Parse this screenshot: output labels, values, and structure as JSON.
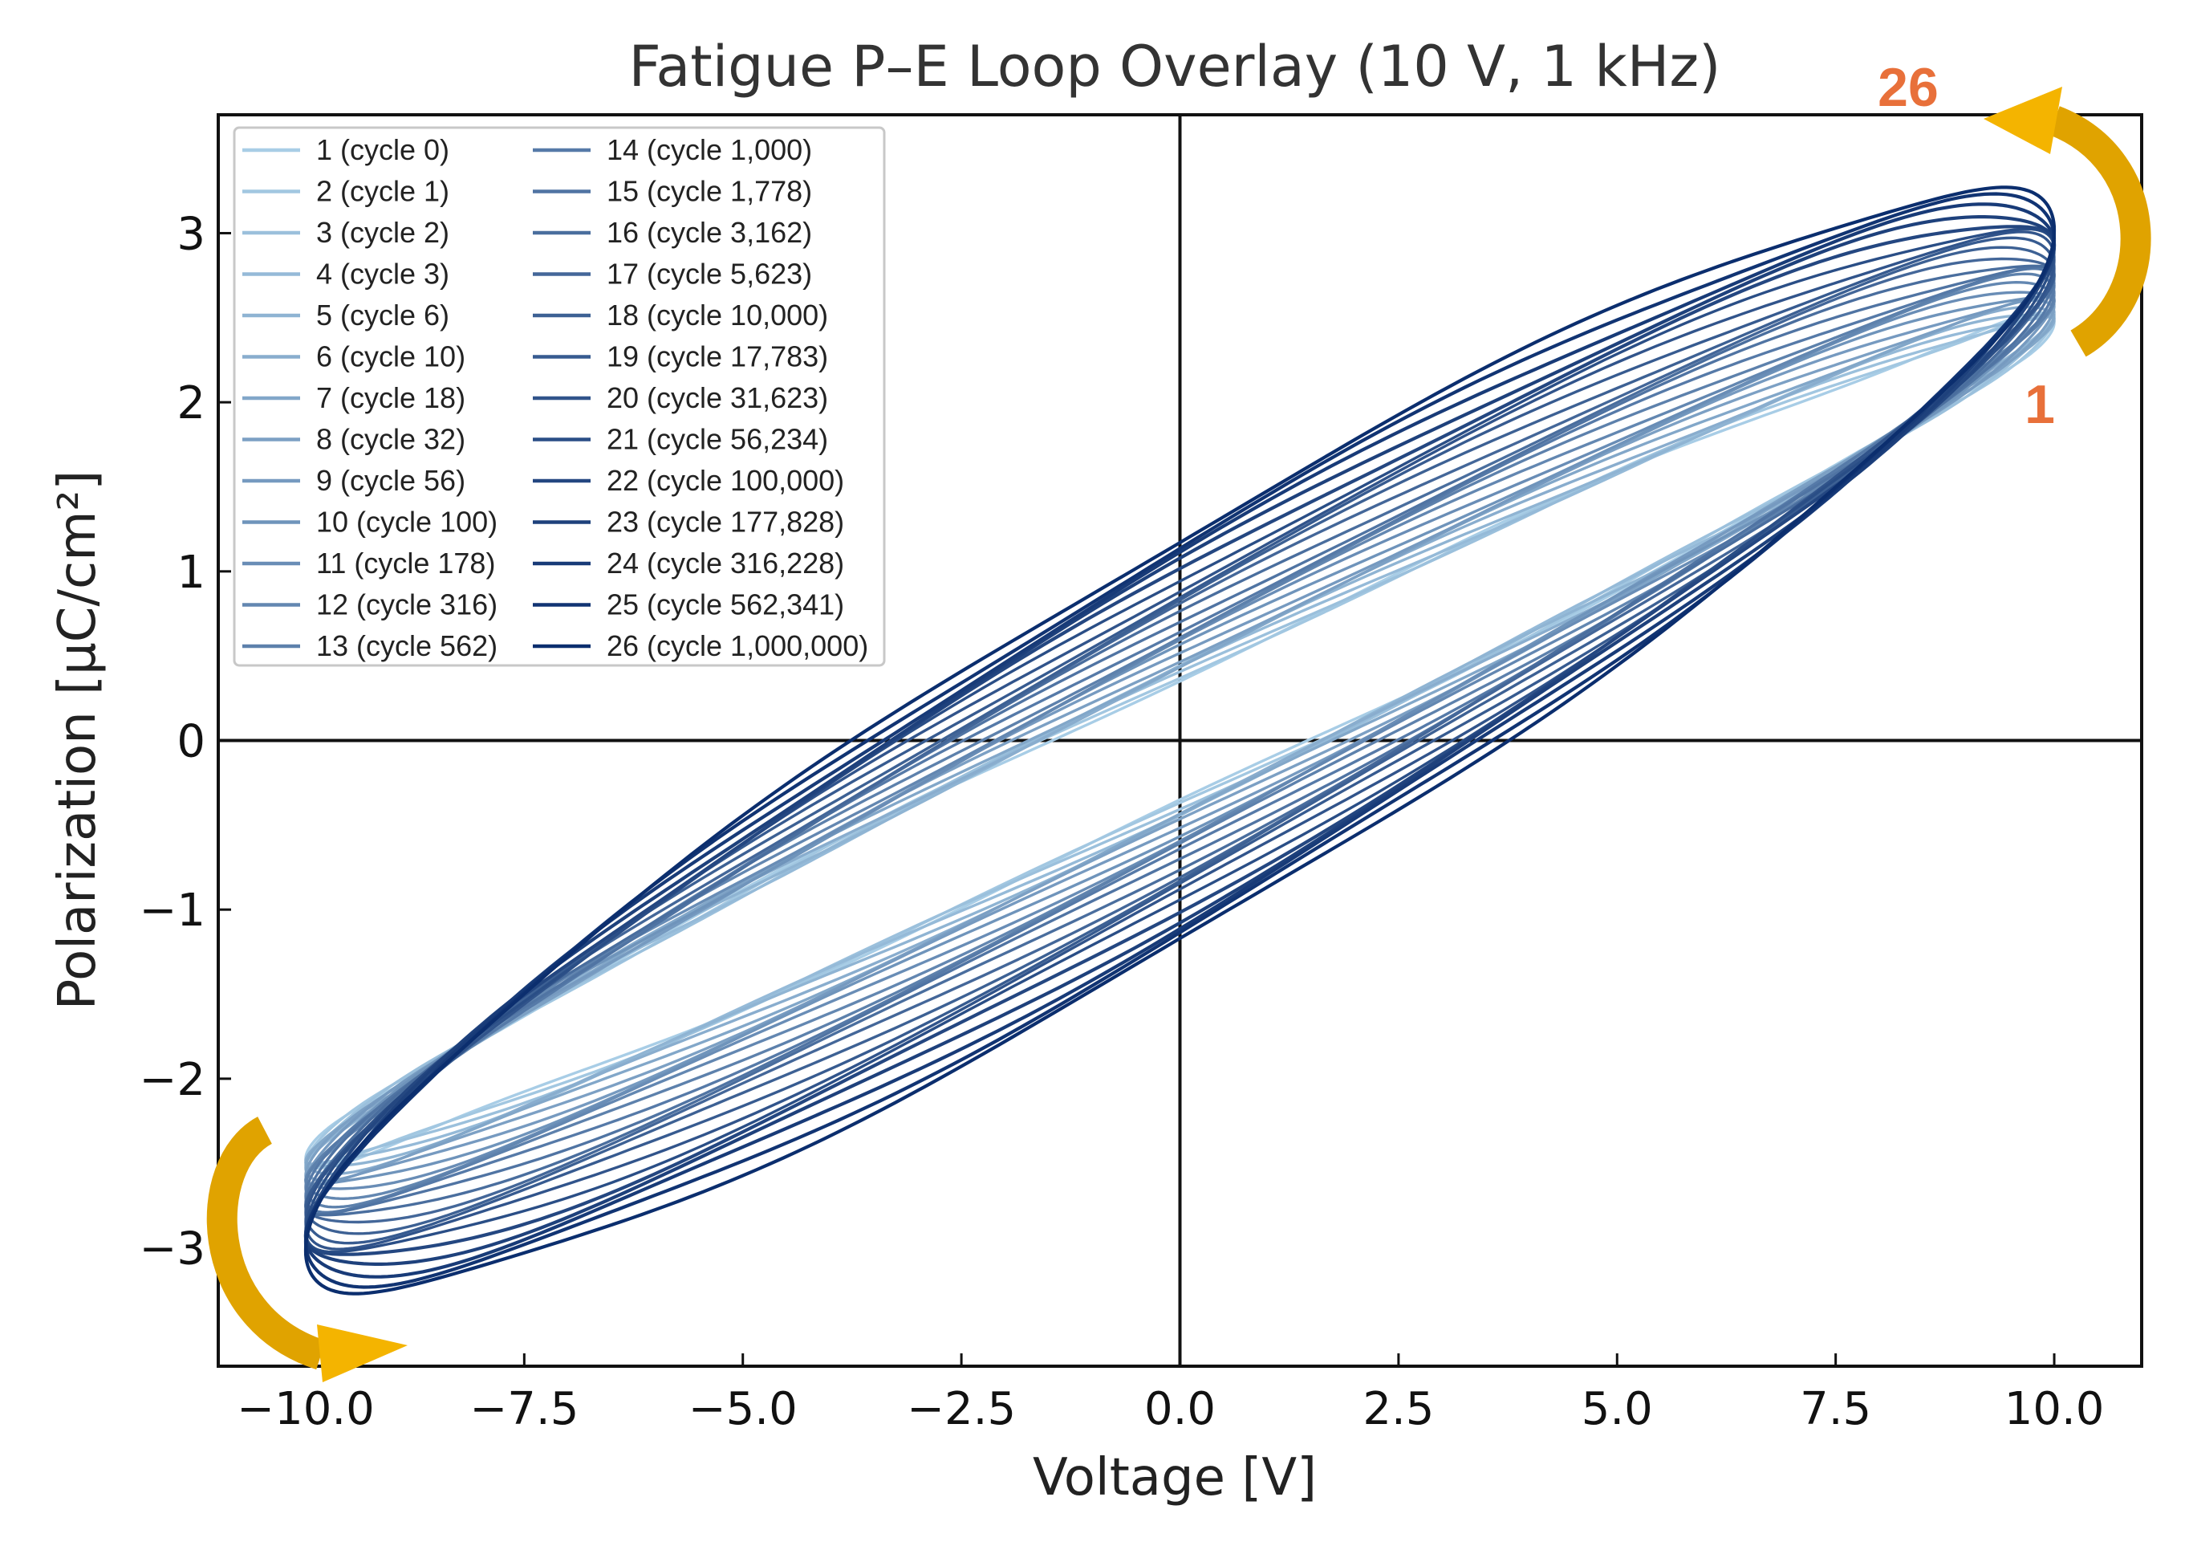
{
  "chart_data": {
    "type": "line",
    "title": "Fatigue P–E Loop Overlay (10 V, 1 kHz)",
    "xlabel": "Voltage [V]",
    "ylabel": "Polarization [μC/cm²]",
    "xlim": [
      -11,
      11
    ],
    "ylim": [
      -3.7,
      3.7
    ],
    "xticks": [
      -10,
      -7.5,
      -5,
      -2.5,
      0,
      2.5,
      5,
      7.5,
      10
    ],
    "xtick_labels": [
      "−10.0",
      "−7.5",
      "−5.0",
      "−2.5",
      "0.0",
      "2.5",
      "5.0",
      "7.5",
      "10.0"
    ],
    "yticks": [
      -3,
      -2,
      -1,
      0,
      1,
      2,
      3
    ],
    "ytick_labels": [
      "−3",
      "−2",
      "−1",
      "0",
      "1",
      "2",
      "3"
    ],
    "grid": false,
    "legend_position": "top-left",
    "annotations": {
      "start_label": "1",
      "end_label": "26"
    },
    "loop_params": {
      "x_range": [
        -10,
        10
      ],
      "first": {
        "pmax": 2.5,
        "pr": 0.38
      },
      "last": {
        "pmax": 3.25,
        "pr": 1.2
      }
    },
    "series": [
      {
        "name": "1 (cycle 0)"
      },
      {
        "name": "2 (cycle 1)"
      },
      {
        "name": "3 (cycle 2)"
      },
      {
        "name": "4 (cycle 3)"
      },
      {
        "name": "5 (cycle 6)"
      },
      {
        "name": "6 (cycle 10)"
      },
      {
        "name": "7 (cycle 18)"
      },
      {
        "name": "8 (cycle 32)"
      },
      {
        "name": "9 (cycle 56)"
      },
      {
        "name": "10 (cycle 100)"
      },
      {
        "name": "11 (cycle 178)"
      },
      {
        "name": "12 (cycle 316)"
      },
      {
        "name": "13 (cycle 562)"
      },
      {
        "name": "14 (cycle 1,000)"
      },
      {
        "name": "15 (cycle 1,778)"
      },
      {
        "name": "16 (cycle 3,162)"
      },
      {
        "name": "17 (cycle 5,623)"
      },
      {
        "name": "18 (cycle 10,000)"
      },
      {
        "name": "19 (cycle 17,783)"
      },
      {
        "name": "20 (cycle 31,623)"
      },
      {
        "name": "21 (cycle 56,234)"
      },
      {
        "name": "22 (cycle 100,000)"
      },
      {
        "name": "23 (cycle 177,828)"
      },
      {
        "name": "24 (cycle 316,228)"
      },
      {
        "name": "25 (cycle 562,341)"
      },
      {
        "name": "26 (cycle 1,000,000)"
      }
    ],
    "colors": {
      "light": "#a8cde6",
      "dark": "#0b2e6e",
      "axes": "#111111",
      "arrow": "#f4b400",
      "arrow_dark": "#c48b00"
    }
  }
}
